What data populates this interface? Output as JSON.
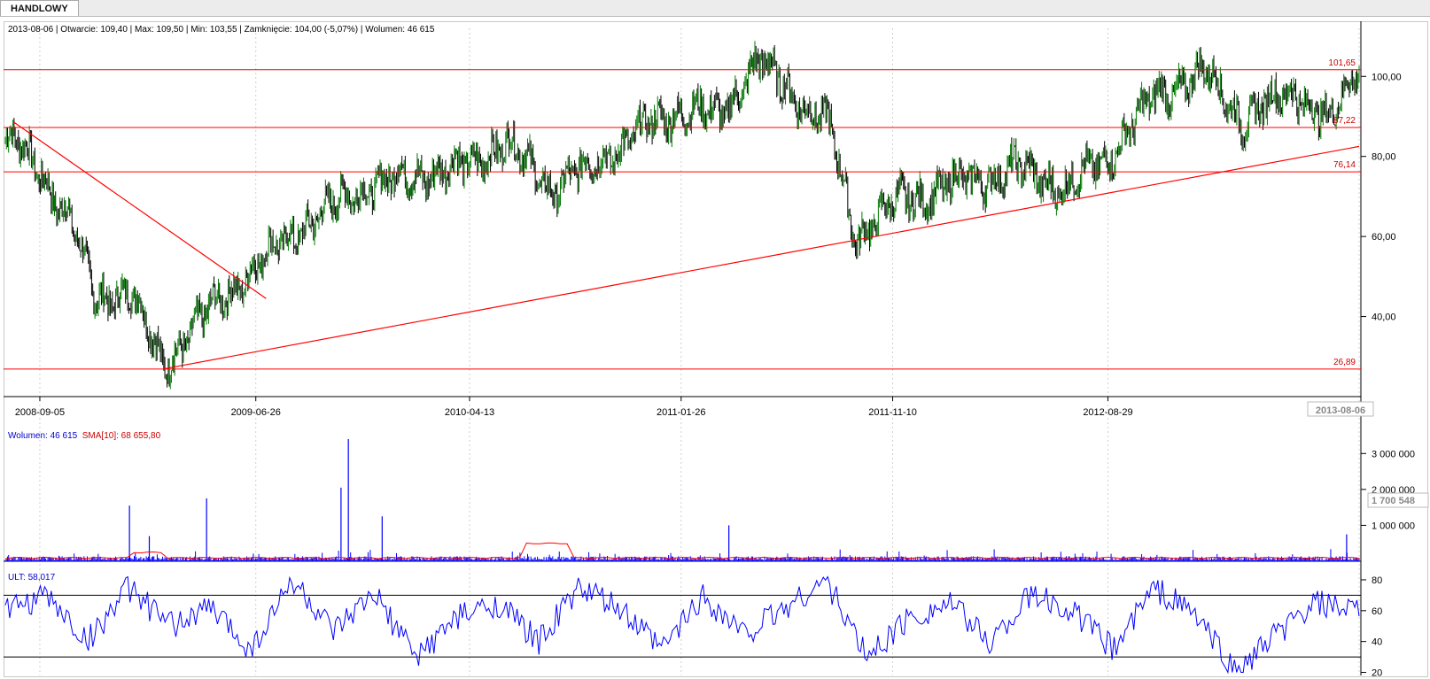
{
  "tab": {
    "label": "HANDLOWY"
  },
  "ohlc_line": "2013-08-06 | Otwarcie: 109,40 | Max: 109,50 | Min: 103,55 | Zamknięcie: 104,00 (-5,07%) | Wolumen: 46 615",
  "volume_legend": {
    "volume": "Wolumen: 46 615",
    "sma": "SMA[10]: 68 655,80"
  },
  "ult_legend": "ULT: 58,017",
  "colors": {
    "price": "#000000",
    "up_fill": "#007a00",
    "levels": "#ff0000",
    "volume": "#0000ff",
    "sma": "#ff0000",
    "ult": "#0000ff",
    "grid": "#d0d0d0"
  },
  "price_axis": {
    "ticks": [
      "100,00",
      "80,00",
      "60,00",
      "40,00"
    ]
  },
  "volume_axis": {
    "ticks": [
      "3 000 000",
      "2 000 000",
      "1 000 000"
    ],
    "current": "1 700 548"
  },
  "ult_axis": {
    "ticks": [
      "80",
      "60",
      "40",
      "20"
    ]
  },
  "date_axis": {
    "labels": [
      "2008-09-05",
      "2009-06-26",
      "2010-04-13",
      "2011-01-26",
      "2011-11-10",
      "2012-08-29"
    ],
    "current": "2013-08-06"
  },
  "levels": [
    {
      "label": "101,65",
      "value": 101.65
    },
    {
      "label": "87,22",
      "value": 87.22
    },
    {
      "label": "76,14",
      "value": 76.14
    },
    {
      "label": "26,89",
      "value": 26.89
    }
  ],
  "trendlines": [
    {
      "name": "downtrend-line",
      "from": [
        "2008-08-01",
        88.5
      ],
      "to": [
        "2009-07-10",
        44.5
      ]
    },
    {
      "name": "uptrend-line",
      "from": [
        "2009-02-20",
        26.9
      ],
      "to": [
        "2013-08-06",
        82.5
      ]
    }
  ],
  "chart_data": [
    {
      "type": "line",
      "title": "",
      "xlabel": "",
      "ylabel": "",
      "series": [
        {
          "name": "",
          "x": [
            "2008-08-01",
            "2008-09-05",
            "2008-10-15",
            "2008-11-20",
            "2009-01-05",
            "2009-02-20",
            "2009-04-01",
            "2009-06-26",
            "2009-09-01",
            "2009-11-15",
            "2010-01-15",
            "2010-04-13",
            "2010-06-01",
            "2010-08-01",
            "2010-10-15",
            "2010-12-15",
            "2011-01-26",
            "2011-03-20",
            "2011-05-10",
            "2011-07-01",
            "2011-08-15",
            "2011-09-20",
            "2011-11-10",
            "2012-02-01",
            "2012-05-01",
            "2012-07-01",
            "2012-08-29",
            "2012-11-01",
            "2013-01-10",
            "2013-03-01",
            "2013-05-10",
            "2013-06-25",
            "2013-08-06"
          ],
          "values": [
            84,
            76,
            65,
            44,
            47,
            28,
            37,
            53,
            63,
            72,
            75,
            78,
            84,
            72,
            80,
            88,
            92,
            90,
            104,
            95,
            88,
            60,
            68,
            73,
            77,
            72,
            80,
            95,
            101,
            89,
            97,
            88,
            104
          ]
        }
      ],
      "ylim": [
        25,
        112
      ]
    },
    {
      "type": "bar",
      "title": "",
      "series": [
        {
          "name": "Wolumen",
          "values": [
            1550000,
            700000,
            1750000,
            3400000,
            2050000,
            1250000,
            1000000,
            750000
          ]
        }
      ],
      "x": [
        "2009-01-05",
        "2009-02-01",
        "2009-04-20",
        "2009-10-30",
        "2009-10-20",
        "2009-12-15",
        "2011-04-01",
        "2013-07-20"
      ],
      "ylim": [
        0,
        3500000
      ]
    },
    {
      "type": "line",
      "title": "",
      "series": [
        {
          "name": "ULT",
          "values": [
            60,
            70,
            40,
            75,
            50,
            62,
            35,
            80,
            45,
            70,
            30,
            55,
            65,
            40,
            75,
            60,
            35,
            70,
            45,
            62,
            80,
            30,
            55,
            65,
            40,
            70,
            60,
            35,
            75,
            58,
            20,
            45,
            65,
            58
          ]
        }
      ],
      "ylim": [
        18,
        84
      ],
      "reference_lines": [
        70,
        30
      ]
    }
  ]
}
